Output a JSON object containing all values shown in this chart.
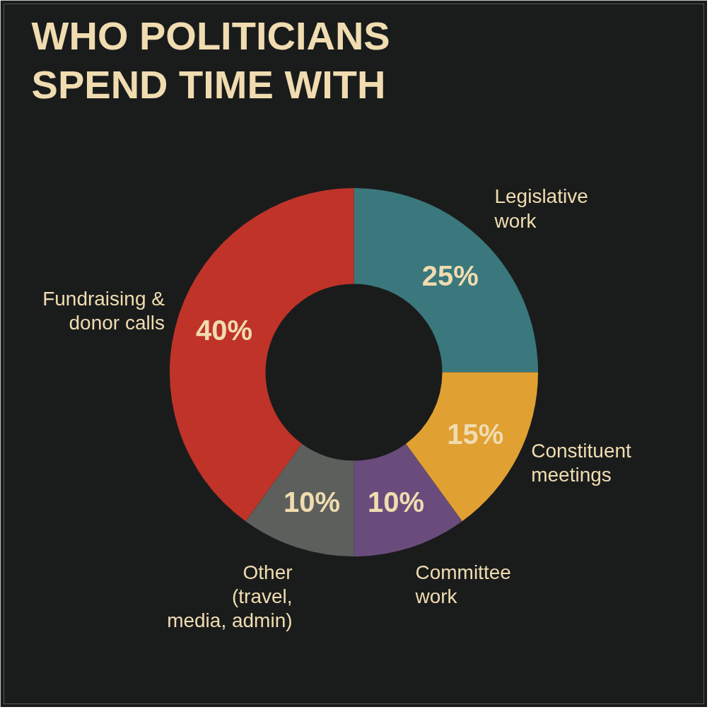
{
  "chart_data": {
    "type": "donut",
    "title": "WHO POLITICIANS SPEND TIME WITH",
    "categories": [
      "Legislative work",
      "Constituent meetings",
      "Committee work",
      "Other (travel, media, admin)",
      "Fundraising & donor calls"
    ],
    "values": [
      25,
      15,
      10,
      10,
      40
    ],
    "value_labels": [
      "25%",
      "15%",
      "10%",
      "10%",
      "40%"
    ],
    "colors": [
      "#3a787e",
      "#e0a032",
      "#6a4c7c",
      "#5c5f5b",
      "#c03329"
    ]
  }
}
